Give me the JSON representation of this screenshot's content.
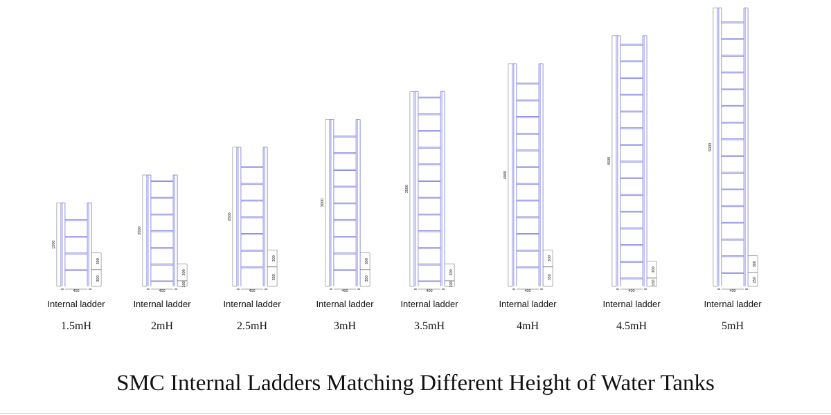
{
  "title": "SMC Internal Ladders Matching Different Height of Water Tanks",
  "colors": {
    "rail": "#8f8fe6",
    "dimension": "#8a8a8a",
    "text": "#111111"
  },
  "units": "mm",
  "ladders": [
    {
      "kind": "Internal ladder",
      "label": "1.5mH",
      "height": 1500,
      "width": 400,
      "pitch": 300,
      "bottom_offset": 300,
      "dim_height": "1500",
      "dim_width": "400",
      "dim_pitch": "300",
      "dim_bottom": "300"
    },
    {
      "kind": "Internal ladder",
      "label": "2mH",
      "height": 2000,
      "width": 400,
      "pitch": 300,
      "bottom_offset": 100,
      "dim_height": "2000",
      "dim_width": "400",
      "dim_pitch": "300",
      "dim_bottom": "100"
    },
    {
      "kind": "Internal ladder",
      "label": "2.5mH",
      "height": 2500,
      "width": 400,
      "pitch": 300,
      "bottom_offset": 350,
      "dim_height": "2500",
      "dim_width": "400",
      "dim_pitch": "300",
      "dim_bottom": "350"
    },
    {
      "kind": "Internal ladder",
      "label": "3mH",
      "height": 3000,
      "width": 400,
      "pitch": 300,
      "bottom_offset": 300,
      "dim_height": "3000",
      "dim_width": "400",
      "dim_pitch": "300",
      "dim_bottom": "300"
    },
    {
      "kind": "Internal ladder",
      "label": "3.5mH",
      "height": 3500,
      "width": 400,
      "pitch": 300,
      "bottom_offset": 100,
      "dim_height": "3500",
      "dim_width": "400",
      "dim_pitch": "300",
      "dim_bottom": "100"
    },
    {
      "kind": "Internal ladder",
      "label": "4mH",
      "height": 4000,
      "width": 400,
      "pitch": 300,
      "bottom_offset": 350,
      "dim_height": "4000",
      "dim_width": "400",
      "dim_pitch": "300",
      "dim_bottom": "350"
    },
    {
      "kind": "Internal ladder",
      "label": "4.5mH",
      "height": 4500,
      "width": 400,
      "pitch": 300,
      "bottom_offset": 150,
      "dim_height": "4500",
      "dim_width": "400",
      "dim_pitch": "300",
      "dim_bottom": "150"
    },
    {
      "kind": "Internal ladder",
      "label": "5mH",
      "height": 5000,
      "width": 400,
      "pitch": 300,
      "bottom_offset": 250,
      "dim_height": "5000",
      "dim_width": "400",
      "dim_pitch": "300",
      "dim_bottom": "250"
    }
  ]
}
